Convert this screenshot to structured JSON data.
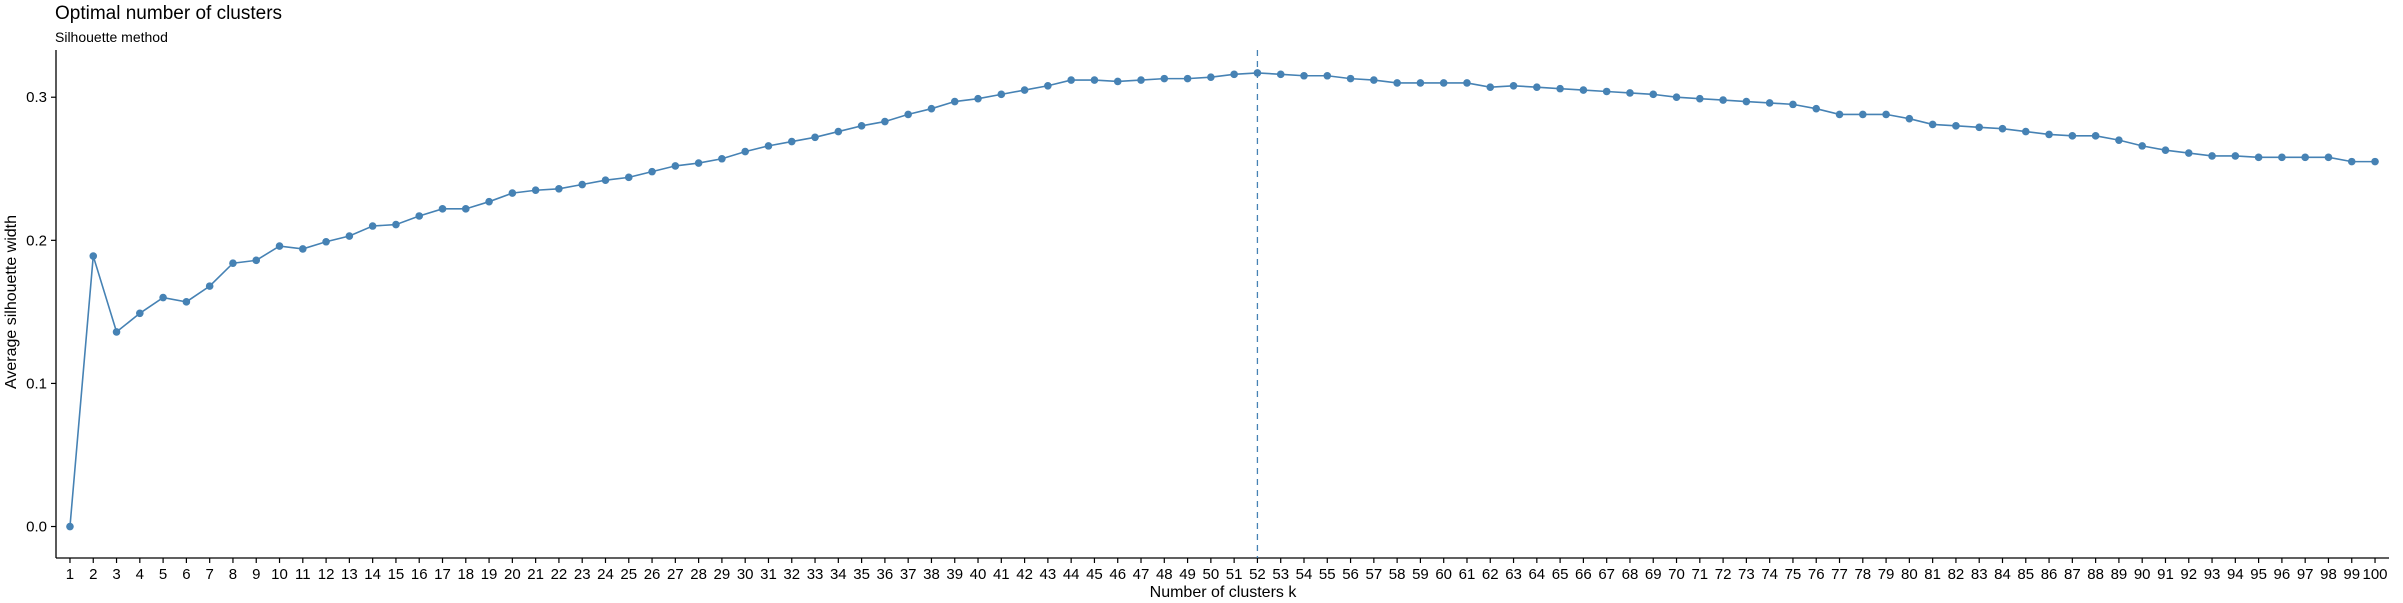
{
  "chart_data": {
    "type": "line",
    "title": "Optimal number of clusters",
    "subtitle": "Silhouette method",
    "xlabel": "Number of clusters k",
    "ylabel": "Average silhouette width",
    "x": [
      1,
      2,
      3,
      4,
      5,
      6,
      7,
      8,
      9,
      10,
      11,
      12,
      13,
      14,
      15,
      16,
      17,
      18,
      19,
      20,
      21,
      22,
      23,
      24,
      25,
      26,
      27,
      28,
      29,
      30,
      31,
      32,
      33,
      34,
      35,
      36,
      37,
      38,
      39,
      40,
      41,
      42,
      43,
      44,
      45,
      46,
      47,
      48,
      49,
      50,
      51,
      52,
      53,
      54,
      55,
      56,
      57,
      58,
      59,
      60,
      61,
      62,
      63,
      64,
      65,
      66,
      67,
      68,
      69,
      70,
      71,
      72,
      73,
      74,
      75,
      76,
      77,
      78,
      79,
      80,
      81,
      82,
      83,
      84,
      85,
      86,
      87,
      88,
      89,
      90,
      91,
      92,
      93,
      94,
      95,
      96,
      97,
      98,
      99,
      100
    ],
    "y": [
      0.0,
      0.189,
      0.136,
      0.149,
      0.16,
      0.157,
      0.168,
      0.184,
      0.186,
      0.196,
      0.194,
      0.199,
      0.203,
      0.21,
      0.211,
      0.217,
      0.222,
      0.222,
      0.227,
      0.233,
      0.235,
      0.236,
      0.239,
      0.242,
      0.244,
      0.248,
      0.252,
      0.254,
      0.257,
      0.262,
      0.266,
      0.269,
      0.272,
      0.276,
      0.28,
      0.283,
      0.288,
      0.292,
      0.297,
      0.299,
      0.302,
      0.305,
      0.308,
      0.312,
      0.312,
      0.311,
      0.312,
      0.313,
      0.313,
      0.314,
      0.316,
      0.317,
      0.316,
      0.315,
      0.315,
      0.313,
      0.312,
      0.31,
      0.31,
      0.31,
      0.31,
      0.307,
      0.308,
      0.307,
      0.306,
      0.305,
      0.304,
      0.303,
      0.302,
      0.3,
      0.299,
      0.298,
      0.297,
      0.296,
      0.295,
      0.292,
      0.288,
      0.288,
      0.288,
      0.285,
      0.281,
      0.28,
      0.279,
      0.278,
      0.276,
      0.274,
      0.273,
      0.273,
      0.27,
      0.266,
      0.263,
      0.261,
      0.259,
      0.259,
      0.258,
      0.258,
      0.258,
      0.258,
      0.255,
      0.255
    ],
    "optimal_k": 52,
    "yticks": [
      0.0,
      0.1,
      0.2,
      0.3
    ],
    "ytick_labels": [
      "0.0",
      "0.1",
      "0.2",
      "0.3"
    ],
    "xlim": [
      0.4,
      100.6
    ],
    "ylim": [
      -0.022,
      0.333
    ],
    "grid": false,
    "legend": "none",
    "colors": {
      "line": "#4682b4",
      "point": "#4682b4",
      "vline": "#4682b4",
      "axis": "#000000"
    }
  }
}
